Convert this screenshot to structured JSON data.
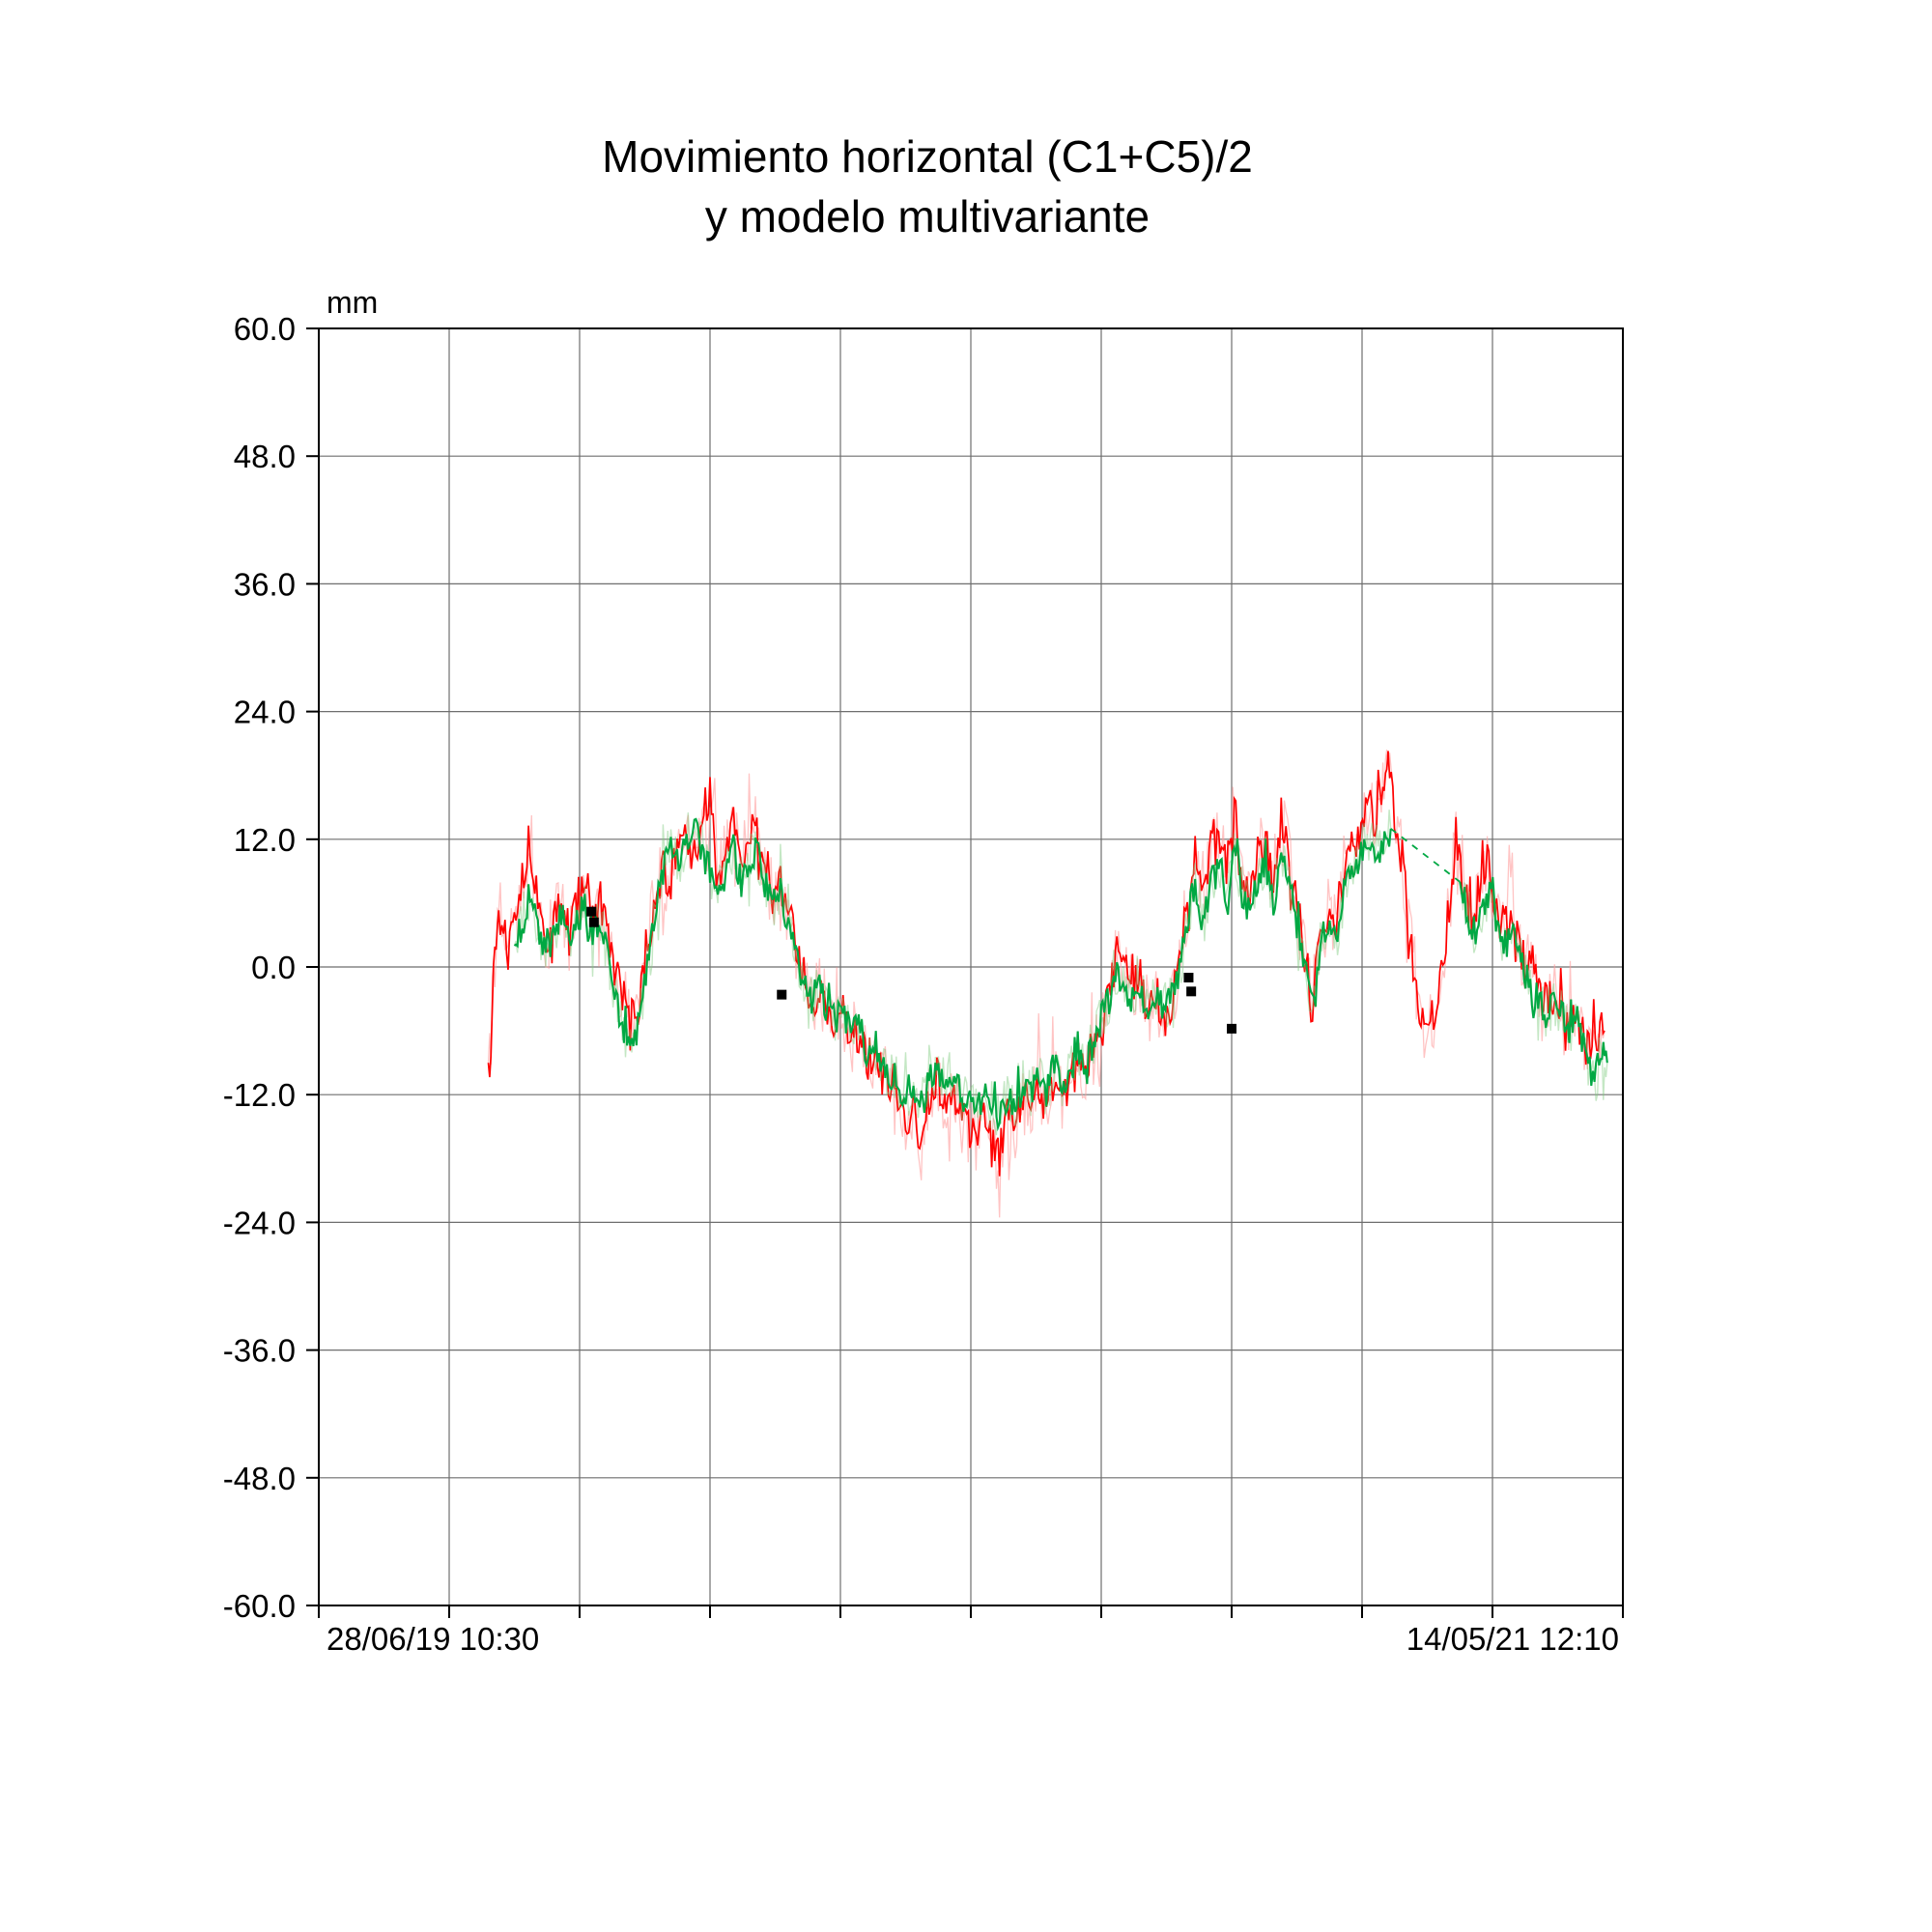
{
  "chart_data": {
    "type": "line",
    "title_line1": "Movimiento horizontal (C1+C5)/2",
    "title_line2": "y modelo multivariante",
    "unit_label": "mm",
    "ylim": [
      -60.0,
      60.0
    ],
    "y_tick_step": 12.0,
    "y_tick_labels": [
      "60.0",
      "48.0",
      "36.0",
      "24.0",
      "12.0",
      "0.0",
      "-12.0",
      "-24.0",
      "-36.0",
      "-48.0",
      "-60.0"
    ],
    "x_tick_labels": [
      "28/06/19 10:30",
      "14/05/21 12:10"
    ],
    "x_gridline_intervals": 10,
    "grid": true,
    "legend": "none",
    "colors": {
      "red_main": "#ff0000",
      "red_halo": "#ff9d9d",
      "green_main": "#00a843",
      "green_halo": "#7cc97c",
      "marker": "#000000",
      "gridline": "#6e6e6e",
      "axis": "#000000"
    },
    "noise": {
      "seed": 11,
      "red_amp": 2.1,
      "green_amp": 1.5,
      "halo_scale": 1.6,
      "substep_density": 900,
      "spike_prob": 0.08,
      "spike_scale": 2.0
    },
    "series": [
      {
        "id": "red",
        "name": "Movimiento horizontal (C1+C5)/2",
        "style": "solid",
        "points": [
          [
            0.13,
            -9
          ],
          [
            0.134,
            0
          ],
          [
            0.138,
            5
          ],
          [
            0.144,
            3
          ],
          [
            0.15,
            6
          ],
          [
            0.156,
            8
          ],
          [
            0.162,
            12
          ],
          [
            0.168,
            6
          ],
          [
            0.174,
            2
          ],
          [
            0.18,
            4
          ],
          [
            0.186,
            6
          ],
          [
            0.192,
            3
          ],
          [
            0.198,
            6
          ],
          [
            0.204,
            8
          ],
          [
            0.21,
            5
          ],
          [
            0.216,
            6
          ],
          [
            0.222,
            3
          ],
          [
            0.228,
            -1
          ],
          [
            0.234,
            -3
          ],
          [
            0.24,
            -5
          ],
          [
            0.246,
            -4
          ],
          [
            0.252,
            2
          ],
          [
            0.258,
            7
          ],
          [
            0.264,
            9
          ],
          [
            0.27,
            8
          ],
          [
            0.276,
            11
          ],
          [
            0.282,
            12
          ],
          [
            0.288,
            10
          ],
          [
            0.294,
            14
          ],
          [
            0.3,
            16
          ],
          [
            0.306,
            9
          ],
          [
            0.312,
            11
          ],
          [
            0.318,
            13
          ],
          [
            0.324,
            10
          ],
          [
            0.33,
            12
          ],
          [
            0.336,
            13
          ],
          [
            0.342,
            9
          ],
          [
            0.348,
            7
          ],
          [
            0.354,
            8
          ],
          [
            0.36,
            5
          ],
          [
            0.366,
            2
          ],
          [
            0.372,
            -1
          ],
          [
            0.378,
            -3
          ],
          [
            0.384,
            -2
          ],
          [
            0.39,
            -4
          ],
          [
            0.396,
            -6
          ],
          [
            0.402,
            -5
          ],
          [
            0.408,
            -7
          ],
          [
            0.414,
            -6
          ],
          [
            0.42,
            -9
          ],
          [
            0.426,
            -8
          ],
          [
            0.432,
            -10
          ],
          [
            0.438,
            -12
          ],
          [
            0.444,
            -13
          ],
          [
            0.45,
            -15
          ],
          [
            0.456,
            -13
          ],
          [
            0.462,
            -17
          ],
          [
            0.468,
            -12
          ],
          [
            0.474,
            -10
          ],
          [
            0.48,
            -13
          ],
          [
            0.486,
            -12
          ],
          [
            0.492,
            -14
          ],
          [
            0.498,
            -15
          ],
          [
            0.504,
            -16
          ],
          [
            0.51,
            -14
          ],
          [
            0.516,
            -17
          ],
          [
            0.522,
            -18
          ],
          [
            0.528,
            -14
          ],
          [
            0.534,
            -15
          ],
          [
            0.54,
            -12
          ],
          [
            0.546,
            -13
          ],
          [
            0.552,
            -11
          ],
          [
            0.558,
            -13
          ],
          [
            0.564,
            -10
          ],
          [
            0.57,
            -12
          ],
          [
            0.576,
            -11
          ],
          [
            0.582,
            -9
          ],
          [
            0.588,
            -10
          ],
          [
            0.594,
            -8
          ],
          [
            0.6,
            -6
          ],
          [
            0.606,
            -3
          ],
          [
            0.612,
            1
          ],
          [
            0.618,
            0
          ],
          [
            0.624,
            -2
          ],
          [
            0.63,
            -1
          ],
          [
            0.636,
            -4
          ],
          [
            0.642,
            -3
          ],
          [
            0.648,
            -5
          ],
          [
            0.654,
            -4
          ],
          [
            0.66,
            1
          ],
          [
            0.666,
            6
          ],
          [
            0.672,
            11
          ],
          [
            0.678,
            6
          ],
          [
            0.684,
            11
          ],
          [
            0.69,
            13
          ],
          [
            0.696,
            9
          ],
          [
            0.702,
            15
          ],
          [
            0.708,
            9
          ],
          [
            0.714,
            7
          ],
          [
            0.72,
            11
          ],
          [
            0.726,
            12
          ],
          [
            0.732,
            8
          ],
          [
            0.738,
            14
          ],
          [
            0.744,
            10
          ],
          [
            0.75,
            6
          ],
          [
            0.756,
            1
          ],
          [
            0.762,
            -3
          ],
          [
            0.768,
            3
          ],
          [
            0.774,
            5
          ],
          [
            0.78,
            4
          ],
          [
            0.786,
            9
          ],
          [
            0.792,
            11
          ],
          [
            0.798,
            13
          ],
          [
            0.804,
            15
          ],
          [
            0.81,
            14
          ],
          [
            0.816,
            18
          ],
          [
            0.82,
            20
          ],
          [
            0.826,
            13
          ],
          [
            0.832,
            9
          ],
          [
            0.838,
            2
          ],
          [
            0.844,
            -4
          ],
          [
            0.85,
            -7
          ],
          [
            0.856,
            -4
          ],
          [
            0.862,
            1
          ],
          [
            0.868,
            7
          ],
          [
            0.872,
            12
          ],
          [
            0.878,
            7
          ],
          [
            0.884,
            5
          ],
          [
            0.89,
            7
          ],
          [
            0.896,
            10
          ],
          [
            0.902,
            5
          ],
          [
            0.908,
            4
          ],
          [
            0.914,
            5
          ],
          [
            0.92,
            2
          ],
          [
            0.926,
            0
          ],
          [
            0.932,
            -1
          ],
          [
            0.938,
            -4
          ],
          [
            0.944,
            -2
          ],
          [
            0.95,
            -3
          ],
          [
            0.956,
            -6
          ],
          [
            0.962,
            -4
          ],
          [
            0.968,
            -6
          ],
          [
            0.974,
            -8
          ],
          [
            0.98,
            -6
          ],
          [
            0.986,
            -6
          ]
        ]
      },
      {
        "id": "green_model",
        "name": "modelo multivariante",
        "style": "solid-with-dashed-gap",
        "segments": [
          [
            [
              0.15,
              2
            ],
            [
              0.156,
              4
            ],
            [
              0.162,
              7
            ],
            [
              0.168,
              4
            ],
            [
              0.174,
              1
            ],
            [
              0.18,
              3
            ],
            [
              0.186,
              5
            ],
            [
              0.192,
              2
            ],
            [
              0.198,
              4
            ],
            [
              0.204,
              6
            ],
            [
              0.21,
              3
            ],
            [
              0.216,
              4
            ],
            [
              0.222,
              1
            ],
            [
              0.228,
              -3
            ],
            [
              0.234,
              -6
            ],
            [
              0.24,
              -8
            ],
            [
              0.246,
              -5
            ],
            [
              0.252,
              0
            ],
            [
              0.258,
              5
            ],
            [
              0.264,
              9
            ],
            [
              0.27,
              12
            ],
            [
              0.276,
              10
            ],
            [
              0.282,
              12
            ],
            [
              0.288,
              13
            ],
            [
              0.294,
              11
            ],
            [
              0.3,
              9
            ],
            [
              0.306,
              7
            ],
            [
              0.312,
              9
            ],
            [
              0.318,
              11
            ],
            [
              0.324,
              8
            ],
            [
              0.33,
              10
            ],
            [
              0.336,
              11
            ],
            [
              0.342,
              8
            ],
            [
              0.348,
              6
            ],
            [
              0.354,
              7
            ],
            [
              0.36,
              4
            ],
            [
              0.366,
              1
            ],
            [
              0.372,
              -2
            ],
            [
              0.378,
              -3
            ],
            [
              0.384,
              -2
            ],
            [
              0.39,
              -4
            ],
            [
              0.396,
              -5
            ],
            [
              0.402,
              -4
            ],
            [
              0.408,
              -6
            ],
            [
              0.414,
              -5
            ],
            [
              0.42,
              -8
            ],
            [
              0.426,
              -7
            ],
            [
              0.432,
              -9
            ],
            [
              0.438,
              -10
            ],
            [
              0.444,
              -11
            ],
            [
              0.45,
              -12
            ],
            [
              0.456,
              -11
            ],
            [
              0.462,
              -13
            ],
            [
              0.468,
              -11
            ],
            [
              0.474,
              -9
            ],
            [
              0.48,
              -11
            ],
            [
              0.486,
              -10
            ],
            [
              0.492,
              -12
            ],
            [
              0.498,
              -13
            ],
            [
              0.504,
              -13
            ],
            [
              0.51,
              -12
            ],
            [
              0.516,
              -13
            ],
            [
              0.522,
              -14
            ],
            [
              0.528,
              -12
            ],
            [
              0.534,
              -13
            ],
            [
              0.54,
              -11
            ],
            [
              0.546,
              -12
            ],
            [
              0.552,
              -10
            ],
            [
              0.558,
              -12
            ],
            [
              0.564,
              -9
            ],
            [
              0.57,
              -11
            ],
            [
              0.576,
              -10
            ],
            [
              0.582,
              -8
            ],
            [
              0.588,
              -9
            ],
            [
              0.594,
              -7
            ],
            [
              0.6,
              -5
            ],
            [
              0.606,
              -3
            ],
            [
              0.612,
              -1
            ],
            [
              0.618,
              -2
            ],
            [
              0.624,
              -3
            ],
            [
              0.63,
              -2
            ],
            [
              0.636,
              -4
            ],
            [
              0.642,
              -3
            ],
            [
              0.648,
              -4
            ],
            [
              0.654,
              -3
            ],
            [
              0.66,
              0
            ],
            [
              0.666,
              4
            ],
            [
              0.672,
              8
            ],
            [
              0.678,
              4
            ],
            [
              0.684,
              8
            ],
            [
              0.69,
              10
            ],
            [
              0.696,
              7
            ],
            [
              0.702,
              11
            ],
            [
              0.708,
              7
            ],
            [
              0.714,
              5
            ],
            [
              0.72,
              8
            ],
            [
              0.726,
              10
            ],
            [
              0.732,
              6
            ],
            [
              0.738,
              11
            ],
            [
              0.744,
              8
            ],
            [
              0.75,
              4
            ],
            [
              0.756,
              0
            ],
            [
              0.762,
              -3
            ],
            [
              0.768,
              2
            ],
            [
              0.774,
              4
            ],
            [
              0.78,
              2
            ],
            [
              0.786,
              7
            ],
            [
              0.792,
              9
            ],
            [
              0.798,
              10
            ],
            [
              0.804,
              12
            ],
            [
              0.81,
              11
            ],
            [
              0.816,
              12
            ],
            [
              0.822,
              13
            ]
          ],
          [
            [
              0.875,
              8
            ],
            [
              0.881,
              5
            ],
            [
              0.887,
              3
            ],
            [
              0.893,
              6
            ],
            [
              0.899,
              7
            ],
            [
              0.905,
              3
            ],
            [
              0.911,
              2
            ],
            [
              0.917,
              3
            ],
            [
              0.923,
              0
            ],
            [
              0.929,
              -2
            ],
            [
              0.935,
              -3
            ],
            [
              0.941,
              -5
            ],
            [
              0.947,
              -3
            ],
            [
              0.953,
              -4
            ],
            [
              0.959,
              -6
            ],
            [
              0.965,
              -5
            ],
            [
              0.971,
              -8
            ],
            [
              0.977,
              -11
            ],
            [
              0.983,
              -8
            ],
            [
              0.988,
              -9
            ]
          ]
        ],
        "dashed_gap": [
          [
            0.822,
            13
          ],
          [
            0.875,
            8
          ]
        ]
      }
    ],
    "markers": [
      [
        0.209,
        5.2
      ],
      [
        0.211,
        4.2
      ],
      [
        0.355,
        -2.6
      ],
      [
        0.667,
        -1.0
      ],
      [
        0.669,
        -2.3
      ],
      [
        0.7,
        -5.8
      ]
    ]
  }
}
